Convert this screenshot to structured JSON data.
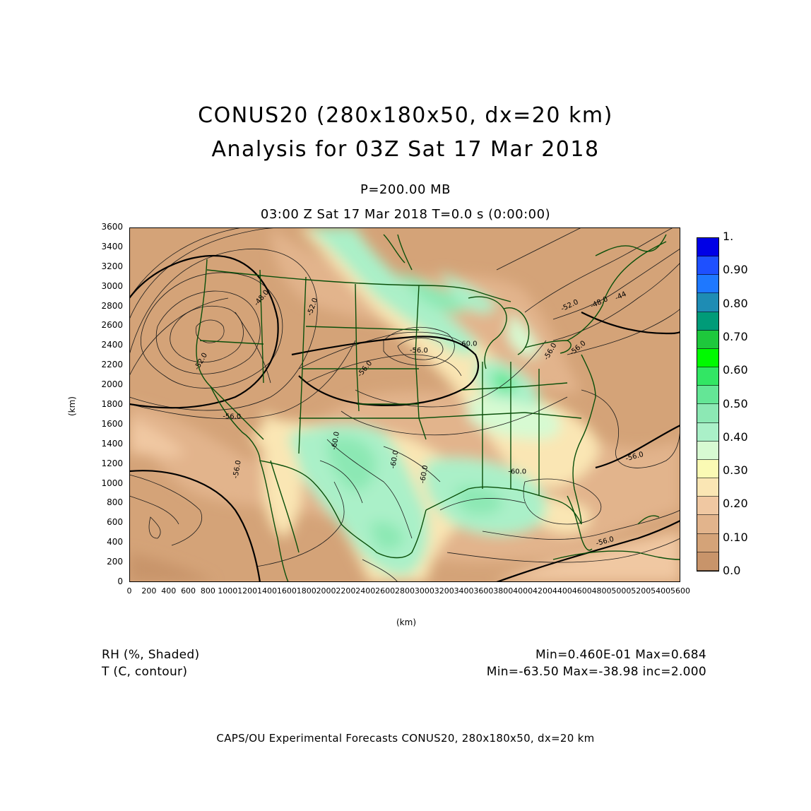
{
  "header": {
    "title_line1": "CONUS20 (280x180x50, dx=20 km)",
    "title_line2": "Analysis for 03Z Sat 17 Mar 2018",
    "level": "P=200.00 MB",
    "time_line": "03:00 Z Sat 17 Mar 2018    T=0.0 s (0:00:00)"
  },
  "axes": {
    "y_label": "(km)",
    "x_label": "(km)",
    "y_ticks": [
      "0",
      "200",
      "400",
      "600",
      "800",
      "1000",
      "1200",
      "1400",
      "1600",
      "1800",
      "2000",
      "2200",
      "2400",
      "2600",
      "2800",
      "3000",
      "3200",
      "3400",
      "3600"
    ],
    "x_ticks": [
      "0",
      "200",
      "400",
      "600",
      "800",
      "1000",
      "1200",
      "1400",
      "1600",
      "1800",
      "2000",
      "2200",
      "2400",
      "2600",
      "2800",
      "3000",
      "3200",
      "3400",
      "3600",
      "3800",
      "4000",
      "4200",
      "4400",
      "4600",
      "4800",
      "5000",
      "5200",
      "5400",
      "5600"
    ]
  },
  "contour_labels": [
    {
      "text": "-52.0",
      "x": 700,
      "y": 2150,
      "rot": -60
    },
    {
      "text": "-48.0",
      "x": 1300,
      "y": 2800,
      "rot": -50
    },
    {
      "text": "-52.0",
      "x": 1850,
      "y": 2700,
      "rot": -70
    },
    {
      "text": "-56.0",
      "x": 950,
      "y": 1660,
      "rot": 0
    },
    {
      "text": "-56.0",
      "x": 1100,
      "y": 1050,
      "rot": -80
    },
    {
      "text": "-56.0",
      "x": 2350,
      "y": 2080,
      "rot": -50
    },
    {
      "text": "-56.0",
      "x": 2850,
      "y": 2330,
      "rot": 0
    },
    {
      "text": "-60.0",
      "x": 2100,
      "y": 1340,
      "rot": -80
    },
    {
      "text": "-60.0",
      "x": 2700,
      "y": 1150,
      "rot": -80
    },
    {
      "text": "-60.0",
      "x": 3000,
      "y": 1000,
      "rot": -80
    },
    {
      "text": "-60.0",
      "x": 3350,
      "y": 2400,
      "rot": 0
    },
    {
      "text": "-60.0",
      "x": 3850,
      "y": 1100,
      "rot": 0
    },
    {
      "text": "-52.0",
      "x": 4400,
      "y": 2750,
      "rot": -25
    },
    {
      "text": "-48.0",
      "x": 4700,
      "y": 2780,
      "rot": -25
    },
    {
      "text": "-44",
      "x": 4950,
      "y": 2860,
      "rot": -25
    },
    {
      "text": "-56.0",
      "x": 4500,
      "y": 2300,
      "rot": -40
    },
    {
      "text": "-56.0",
      "x": 4250,
      "y": 2250,
      "rot": -60
    },
    {
      "text": "-56.0",
      "x": 5050,
      "y": 1230,
      "rot": -15
    },
    {
      "text": "-56.0",
      "x": 4750,
      "y": 370,
      "rot": -15
    }
  ],
  "colorbar": {
    "colors": [
      "#c8946a",
      "#d4a378",
      "#e2b48c",
      "#f0c8a2",
      "#fae6b4",
      "#fafab4",
      "#d7fad2",
      "#aaf0c8",
      "#8ce8b4",
      "#64e696",
      "#32e664",
      "#00fa00",
      "#1ec83c",
      "#009b78",
      "#1e8cb4",
      "#1e78ff",
      "#1e50ff",
      "#0000e6"
    ],
    "labels": [
      "0.0",
      "0.10",
      "0.20",
      "0.30",
      "0.40",
      "0.50",
      "0.60",
      "0.70",
      "0.80",
      "0.90",
      "1."
    ]
  },
  "chart_data": {
    "type": "heatmap",
    "field": "RH (%, Shaded) with T (C, contour)",
    "xlabel": "(km)",
    "ylabel": "(km)",
    "xlim": [
      0,
      5600
    ],
    "ylim": [
      0,
      3600
    ],
    "colorbar_levels": [
      0.0,
      0.1,
      0.2,
      0.3,
      0.4,
      0.5,
      0.6,
      0.7,
      0.8,
      0.9,
      1.0
    ],
    "rh_min": 0.046,
    "rh_max": 0.684,
    "t_min": -63.5,
    "t_max": -38.98,
    "t_inc": 2.0
  },
  "info": {
    "rh_label": "RH (%, Shaded)",
    "t_label": "T (C, contour)",
    "rh_stats": "Min=0.460E-01 Max=0.684",
    "t_stats": "Min=-63.50 Max=-38.98 inc=2.000"
  },
  "footer": "CAPS/OU Experimental Forecasts   CONUS20, 280x180x50, dx=20 km"
}
